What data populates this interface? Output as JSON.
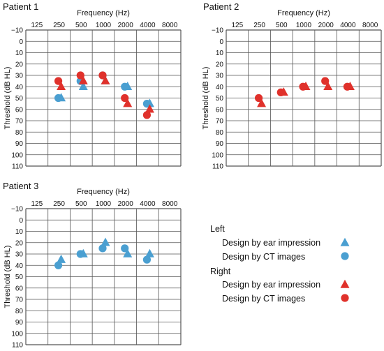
{
  "colors": {
    "left": "#4a9fd1",
    "right": "#e0312b",
    "grid": "#555555"
  },
  "chart_data": [
    {
      "type": "scatter",
      "title": "Patient 1",
      "xlabel": "Frequency (Hz)",
      "ylabel": "Threshold (dB HL)",
      "x_ticks": [
        "125",
        "250",
        "500",
        "1000",
        "2000",
        "4000",
        "8000"
      ],
      "y_ticks": [
        "−10",
        "0",
        "10",
        "20",
        "30",
        "40",
        "50",
        "60",
        "70",
        "80",
        "90",
        "100",
        "110"
      ],
      "ylim": [
        -10,
        110
      ],
      "y_reversed": true,
      "x_scale": "log2",
      "series": [
        {
          "name": "Left – Design by ear impression",
          "side": "left",
          "marker": "triangle",
          "points": [
            [
              250,
              50
            ],
            [
              500,
              40
            ],
            [
              1000,
              35
            ],
            [
              2000,
              40
            ],
            [
              4000,
              55
            ]
          ]
        },
        {
          "name": "Left – Design by CT images",
          "side": "left",
          "marker": "circle",
          "points": [
            [
              250,
              50
            ],
            [
              500,
              35
            ],
            [
              1000,
              30
            ],
            [
              2000,
              40
            ],
            [
              4000,
              55
            ]
          ]
        },
        {
          "name": "Right – Design by ear impression",
          "side": "right",
          "marker": "triangle",
          "points": [
            [
              250,
              40
            ],
            [
              500,
              35
            ],
            [
              1000,
              35
            ],
            [
              2000,
              55
            ],
            [
              4000,
              60
            ]
          ]
        },
        {
          "name": "Right – Design by CT images",
          "side": "right",
          "marker": "circle",
          "points": [
            [
              250,
              35
            ],
            [
              500,
              30
            ],
            [
              1000,
              30
            ],
            [
              2000,
              50
            ],
            [
              4000,
              65
            ]
          ]
        }
      ]
    },
    {
      "type": "scatter",
      "title": "Patient 2",
      "xlabel": "Frequency (Hz)",
      "ylabel": "Threshold (dB HL)",
      "x_ticks": [
        "125",
        "250",
        "500",
        "1000",
        "2000",
        "4000",
        "8000"
      ],
      "y_ticks": [
        "−10",
        "0",
        "10",
        "20",
        "30",
        "40",
        "50",
        "60",
        "70",
        "80",
        "90",
        "100",
        "110"
      ],
      "ylim": [
        -10,
        110
      ],
      "y_reversed": true,
      "x_scale": "log2",
      "series": [
        {
          "name": "Right – Design by ear impression",
          "side": "right",
          "marker": "triangle",
          "points": [
            [
              250,
              55
            ],
            [
              500,
              45
            ],
            [
              1000,
              40
            ],
            [
              2000,
              40
            ],
            [
              4000,
              40
            ]
          ]
        },
        {
          "name": "Right – Design by CT images",
          "side": "right",
          "marker": "circle",
          "points": [
            [
              250,
              50
            ],
            [
              500,
              45
            ],
            [
              1000,
              40
            ],
            [
              2000,
              35
            ],
            [
              4000,
              40
            ]
          ]
        }
      ]
    },
    {
      "type": "scatter",
      "title": "Patient 3",
      "xlabel": "Frequency (Hz)",
      "ylabel": "Threshold (dB HL)",
      "x_ticks": [
        "125",
        "250",
        "500",
        "1000",
        "2000",
        "4000",
        "8000"
      ],
      "y_ticks": [
        "−10",
        "0",
        "10",
        "20",
        "30",
        "40",
        "50",
        "60",
        "70",
        "80",
        "90",
        "100",
        "110"
      ],
      "ylim": [
        -10,
        110
      ],
      "y_reversed": true,
      "x_scale": "log2",
      "series": [
        {
          "name": "Left – Design by ear impression",
          "side": "left",
          "marker": "triangle",
          "points": [
            [
              250,
              35
            ],
            [
              500,
              30
            ],
            [
              1000,
              20
            ],
            [
              2000,
              30
            ],
            [
              4000,
              30
            ]
          ]
        },
        {
          "name": "Left – Design by CT images",
          "side": "left",
          "marker": "circle",
          "points": [
            [
              250,
              40
            ],
            [
              500,
              30
            ],
            [
              1000,
              25
            ],
            [
              2000,
              25
            ],
            [
              4000,
              35
            ]
          ]
        }
      ]
    }
  ],
  "legend": {
    "left_heading": "Left",
    "right_heading": "Right",
    "items": [
      {
        "label": "Design by ear impression",
        "side": "left",
        "marker": "triangle"
      },
      {
        "label": "Design by CT images",
        "side": "left",
        "marker": "circle"
      },
      {
        "label": "Design by ear impression",
        "side": "right",
        "marker": "triangle"
      },
      {
        "label": "Design by CT images",
        "side": "right",
        "marker": "circle"
      }
    ]
  }
}
